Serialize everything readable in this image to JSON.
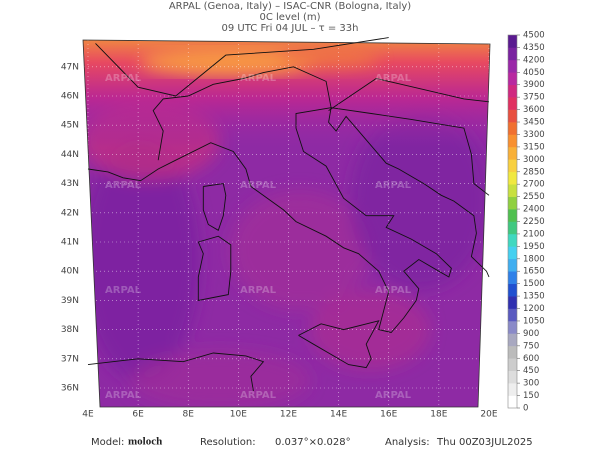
{
  "header": {
    "lines": [
      "ARPAL (Genoa, Italy)  –  ISAC-CNR (Bologna, Italy)",
      "0C level (m)",
      "09 UTC Fri 04 JUL  –  τ = 33h"
    ]
  },
  "map": {
    "watermark": "ARPAL",
    "lat_labels": [
      "36N",
      "37N",
      "38N",
      "39N",
      "40N",
      "41N",
      "42N",
      "43N",
      "44N",
      "45N",
      "46N",
      "47N"
    ],
    "lon_labels": [
      "4E",
      "6E",
      "8E",
      "10E",
      "12E",
      "14E",
      "16E",
      "18E",
      "20E"
    ]
  },
  "colorbar": {
    "levels": [
      0,
      150,
      300,
      450,
      600,
      750,
      900,
      1050,
      1200,
      1350,
      1500,
      1650,
      1800,
      1950,
      2100,
      2250,
      2400,
      2550,
      2700,
      2850,
      3000,
      3150,
      3300,
      3450,
      3600,
      3750,
      3900,
      4050,
      4200,
      4350,
      4500
    ],
    "colors": [
      "#ffffff",
      "#eeeeee",
      "#dddddd",
      "#cccccc",
      "#bbbbbb",
      "#a8a8c0",
      "#8a8ac8",
      "#5a5ac0",
      "#3030b0",
      "#2050d0",
      "#2f80e8",
      "#40aef0",
      "#45d0f0",
      "#40d8c0",
      "#40c880",
      "#50c050",
      "#90d040",
      "#c8e040",
      "#f0e840",
      "#f8d040",
      "#f8b038",
      "#f89030",
      "#f07030",
      "#e85040",
      "#e03060",
      "#d02880",
      "#b828a0",
      "#9a28a8",
      "#7a22a0",
      "#5a1a90"
    ]
  },
  "footer": {
    "model_label": "Model:",
    "model": "moloch",
    "resolution_label": "Resolution:",
    "resolution": "0.037°×0.028°",
    "analysis_label": "Analysis:",
    "analysis": "Thu 00Z03JUL2025"
  }
}
